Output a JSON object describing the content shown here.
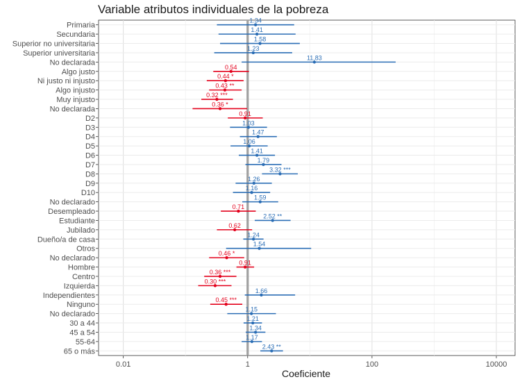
{
  "chart_data": {
    "type": "forest",
    "title": "Variable atributos individuales de la pobreza",
    "xlabel": "Coeficiente",
    "ylabel": "",
    "x_scale": "log10",
    "xlim": [
      0.004,
      20000
    ],
    "x_ticks": [
      0.01,
      1,
      100,
      10000
    ],
    "x_tick_labels": [
      "0.01",
      "1",
      "100",
      "10000"
    ],
    "reference_line": 1,
    "grid": true,
    "colors": {
      "above_one": "#2a6db5",
      "below_one": "#e3001b",
      "reference": "#a0a0a0"
    },
    "rows": [
      {
        "label": "Primaria",
        "estimate": 1.34,
        "low": 0.32,
        "high": 5.6,
        "text": "1.34",
        "group": "above"
      },
      {
        "label": "Secundaria",
        "estimate": 1.41,
        "low": 0.34,
        "high": 5.9,
        "text": "1.41",
        "group": "above"
      },
      {
        "label": "Superior no universitaria",
        "estimate": 1.58,
        "low": 0.36,
        "high": 6.9,
        "text": "1.58",
        "group": "above"
      },
      {
        "label": "Superior universitaria",
        "estimate": 1.23,
        "low": 0.29,
        "high": 5.2,
        "text": "1.23",
        "group": "above"
      },
      {
        "label": "No declarada",
        "estimate": 11.83,
        "low": 0.8,
        "high": 240,
        "text": "11.83",
        "group": "above"
      },
      {
        "label": "Algo justo",
        "estimate": 0.54,
        "low": 0.28,
        "high": 1.05,
        "text": "0.54",
        "group": "below"
      },
      {
        "label": "Ni justo ni injusto",
        "estimate": 0.44,
        "low": 0.22,
        "high": 0.86,
        "text": "0.44 *",
        "group": "below"
      },
      {
        "label": "Algo injusto",
        "estimate": 0.43,
        "low": 0.24,
        "high": 0.8,
        "text": "0.43 **",
        "group": "below"
      },
      {
        "label": "Muy injusto",
        "estimate": 0.32,
        "low": 0.18,
        "high": 0.58,
        "text": "0.32 ***",
        "group": "below"
      },
      {
        "label": "No declarada",
        "estimate": 0.36,
        "low": 0.13,
        "high": 0.98,
        "text": "0.36 *",
        "group": "below"
      },
      {
        "label": "D2",
        "estimate": 0.91,
        "low": 0.48,
        "high": 1.75,
        "text": "0.91",
        "group": "below"
      },
      {
        "label": "D3",
        "estimate": 1.03,
        "low": 0.52,
        "high": 2.05,
        "text": "1.03",
        "group": "above"
      },
      {
        "label": "D4",
        "estimate": 1.47,
        "low": 0.75,
        "high": 2.95,
        "text": "1.47",
        "group": "above"
      },
      {
        "label": "D5",
        "estimate": 1.06,
        "low": 0.53,
        "high": 2.1,
        "text": "1.06",
        "group": "above"
      },
      {
        "label": "D6",
        "estimate": 1.41,
        "low": 0.72,
        "high": 2.75,
        "text": "1.41",
        "group": "above"
      },
      {
        "label": "D7",
        "estimate": 1.79,
        "low": 0.92,
        "high": 3.5,
        "text": "1.79",
        "group": "above"
      },
      {
        "label": "D8",
        "estimate": 3.32,
        "low": 1.7,
        "high": 6.4,
        "text": "3.32 ***",
        "group": "above"
      },
      {
        "label": "D9",
        "estimate": 1.26,
        "low": 0.64,
        "high": 2.45,
        "text": "1.26",
        "group": "above"
      },
      {
        "label": "D10",
        "estimate": 1.16,
        "low": 0.58,
        "high": 2.3,
        "text": "1.16",
        "group": "above"
      },
      {
        "label": "No declarado",
        "estimate": 1.59,
        "low": 0.82,
        "high": 3.1,
        "text": "1.59",
        "group": "above"
      },
      {
        "label": "Desempleado",
        "estimate": 0.71,
        "low": 0.37,
        "high": 1.35,
        "text": "0.71",
        "group": "below"
      },
      {
        "label": "Estudiante",
        "estimate": 2.52,
        "low": 1.3,
        "high": 4.9,
        "text": "2.52 **",
        "group": "above"
      },
      {
        "label": "Jubilado",
        "estimate": 0.62,
        "low": 0.32,
        "high": 1.18,
        "text": "0.62",
        "group": "below"
      },
      {
        "label": "Dueño/a de casa",
        "estimate": 1.24,
        "low": 0.85,
        "high": 1.8,
        "text": "1.24",
        "group": "above"
      },
      {
        "label": "Otros",
        "estimate": 1.54,
        "low": 0.45,
        "high": 10.5,
        "text": "1.54",
        "group": "above"
      },
      {
        "label": "No declarado",
        "estimate": 0.46,
        "low": 0.24,
        "high": 0.88,
        "text": "0.46 *",
        "group": "below"
      },
      {
        "label": "Hombre",
        "estimate": 0.91,
        "low": 0.66,
        "high": 1.27,
        "text": "0.91",
        "group": "below"
      },
      {
        "label": "Centro",
        "estimate": 0.36,
        "low": 0.2,
        "high": 0.66,
        "text": "0.36 ***",
        "group": "below"
      },
      {
        "label": "Izquierda",
        "estimate": 0.3,
        "low": 0.16,
        "high": 0.55,
        "text": "0.30 ***",
        "group": "below"
      },
      {
        "label": "Independientes",
        "estimate": 1.66,
        "low": 0.9,
        "high": 5.8,
        "text": "1.66",
        "group": "above"
      },
      {
        "label": "Ninguno",
        "estimate": 0.45,
        "low": 0.25,
        "high": 0.82,
        "text": "0.45 ***",
        "group": "below"
      },
      {
        "label": "No declarado",
        "estimate": 1.15,
        "low": 0.47,
        "high": 2.85,
        "text": "1.15",
        "group": "above"
      },
      {
        "label": "30 a 44",
        "estimate": 1.21,
        "low": 0.86,
        "high": 1.7,
        "text": "1.21",
        "group": "above"
      },
      {
        "label": "45 a 54",
        "estimate": 1.34,
        "low": 0.93,
        "high": 1.93,
        "text": "1.34",
        "group": "above"
      },
      {
        "label": "55-64",
        "estimate": 1.17,
        "low": 0.8,
        "high": 1.7,
        "text": "1.17",
        "group": "above"
      },
      {
        "label": "65 o más",
        "estimate": 2.43,
        "low": 1.6,
        "high": 3.7,
        "text": "2.43 **",
        "group": "above"
      }
    ]
  }
}
